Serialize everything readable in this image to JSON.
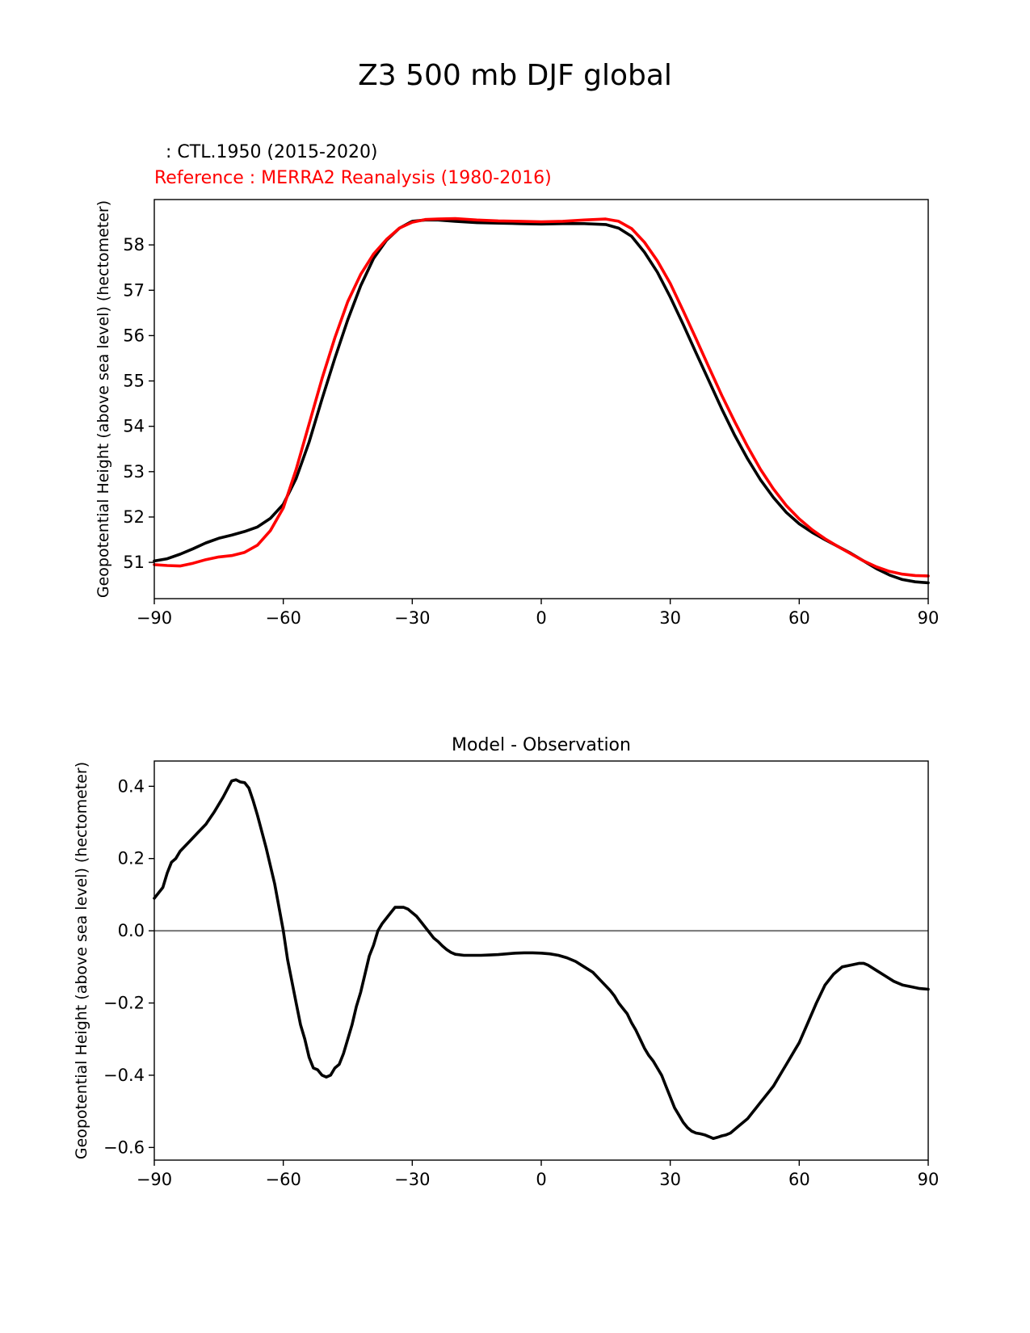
{
  "figure": {
    "title": "Z3 500 mb DJF global",
    "test_label": " : CTL.1950 (2015-2020)",
    "reference_label": "Reference : MERRA2 Reanalysis (1980-2016)"
  },
  "chart_data": [
    {
      "type": "line",
      "title": "",
      "xlabel": "",
      "ylabel": "Geopotential Height (above sea level) (hectometer)",
      "xlim": [
        -90,
        90
      ],
      "ylim": [
        50.2,
        59.0
      ],
      "xticks": [
        -90,
        -60,
        -30,
        0,
        30,
        60,
        90
      ],
      "xtick_labels": [
        "−90",
        "−60",
        "−30",
        "0",
        "30",
        "60",
        "90"
      ],
      "yticks": [
        51,
        52,
        53,
        54,
        55,
        56,
        57,
        58
      ],
      "ytick_labels": [
        "51",
        "52",
        "53",
        "54",
        "55",
        "56",
        "57",
        "58"
      ],
      "series": [
        {
          "name": "CTL.1950 (2015-2020)",
          "color": "#000000",
          "x": [
            -90,
            -87,
            -84,
            -81,
            -78,
            -75,
            -72,
            -69,
            -66,
            -63,
            -60,
            -57,
            -54,
            -51,
            -48,
            -45,
            -42,
            -39,
            -36,
            -33,
            -30,
            -27,
            -24,
            -20,
            -15,
            -10,
            -5,
            0,
            5,
            10,
            15,
            18,
            21,
            24,
            27,
            30,
            33,
            36,
            39,
            42,
            45,
            48,
            51,
            54,
            57,
            60,
            63,
            66,
            69,
            72,
            75,
            78,
            81,
            84,
            87,
            90
          ],
          "y": [
            51.03,
            51.08,
            51.18,
            51.3,
            51.43,
            51.53,
            51.6,
            51.68,
            51.78,
            51.97,
            52.28,
            52.85,
            53.65,
            54.6,
            55.5,
            56.35,
            57.1,
            57.7,
            58.1,
            58.37,
            58.52,
            58.55,
            58.55,
            58.52,
            58.49,
            58.48,
            58.47,
            58.46,
            58.47,
            58.47,
            58.45,
            58.37,
            58.19,
            57.84,
            57.4,
            56.85,
            56.25,
            55.62,
            55.0,
            54.38,
            53.8,
            53.28,
            52.82,
            52.43,
            52.1,
            51.85,
            51.66,
            51.5,
            51.35,
            51.2,
            51.03,
            50.86,
            50.72,
            50.62,
            50.57,
            50.55
          ]
        },
        {
          "name": "MERRA2 Reanalysis (1980-2016)",
          "color": "#ff0000",
          "x": [
            -90,
            -87,
            -84,
            -81,
            -78,
            -75,
            -72,
            -69,
            -66,
            -63,
            -60,
            -57,
            -54,
            -51,
            -48,
            -45,
            -42,
            -39,
            -36,
            -33,
            -30,
            -27,
            -24,
            -20,
            -15,
            -10,
            -5,
            0,
            5,
            10,
            15,
            18,
            21,
            24,
            27,
            30,
            33,
            36,
            39,
            42,
            45,
            48,
            51,
            54,
            57,
            60,
            63,
            66,
            69,
            72,
            75,
            78,
            81,
            84,
            87,
            90
          ],
          "y": [
            50.95,
            50.93,
            50.92,
            50.98,
            51.06,
            51.12,
            51.15,
            51.22,
            51.38,
            51.7,
            52.2,
            53.05,
            54.05,
            55.05,
            55.95,
            56.75,
            57.35,
            57.8,
            58.12,
            58.37,
            58.5,
            58.56,
            58.57,
            58.58,
            58.55,
            58.53,
            58.52,
            58.51,
            58.52,
            58.55,
            58.57,
            58.52,
            58.36,
            58.06,
            57.65,
            57.15,
            56.55,
            55.93,
            55.3,
            54.68,
            54.1,
            53.55,
            53.05,
            52.62,
            52.25,
            51.96,
            51.72,
            51.52,
            51.35,
            51.19,
            51.03,
            50.9,
            50.8,
            50.74,
            50.71,
            50.7
          ]
        }
      ]
    },
    {
      "type": "line",
      "title": "Model - Observation",
      "xlabel": "",
      "ylabel": "Geopotential Height (above sea level) (hectometer)",
      "xlim": [
        -90,
        90
      ],
      "ylim": [
        -0.635,
        0.47
      ],
      "xticks": [
        -90,
        -60,
        -30,
        0,
        30,
        60,
        90
      ],
      "xtick_labels": [
        "−90",
        "−60",
        "−30",
        "0",
        "30",
        "60",
        "90"
      ],
      "yticks": [
        -0.6,
        -0.4,
        -0.2,
        0.0,
        0.2,
        0.4
      ],
      "ytick_labels": [
        "−0.6",
        "−0.4",
        "−0.2",
        "0.0",
        "0.2",
        "0.4"
      ],
      "zero_line": {
        "value": 0.0,
        "color": "#808080"
      },
      "series": [
        {
          "name": "Model - Observation",
          "color": "#000000",
          "x": [
            -90,
            -88,
            -87,
            -86,
            -85,
            -84,
            -82,
            -80,
            -78,
            -76,
            -74,
            -72,
            -71,
            -70,
            -69,
            -68,
            -67,
            -66,
            -64,
            -62,
            -60,
            -59,
            -58,
            -57,
            -56,
            -55,
            -54,
            -53,
            -52,
            -51,
            -50,
            -49,
            -48,
            -47,
            -46,
            -45,
            -44,
            -43,
            -42,
            -41,
            -40,
            -39,
            -38,
            -37,
            -36,
            -35,
            -34,
            -33,
            -32,
            -31,
            -30,
            -29,
            -28,
            -27,
            -26,
            -25,
            -24,
            -23,
            -22,
            -21,
            -20,
            -18,
            -16,
            -14,
            -12,
            -10,
            -8,
            -6,
            -4,
            -2,
            0,
            2,
            4,
            6,
            8,
            10,
            12,
            14,
            16,
            17,
            18,
            19,
            20,
            21,
            22,
            23,
            24,
            25,
            26,
            27,
            28,
            29,
            30,
            31,
            32,
            33,
            34,
            35,
            36,
            37,
            38,
            39,
            40,
            41,
            42,
            43,
            44,
            45,
            46,
            47,
            48,
            49,
            50,
            51,
            52,
            53,
            54,
            55,
            56,
            57,
            58,
            59,
            60,
            62,
            64,
            66,
            68,
            70,
            72,
            74,
            75,
            76,
            78,
            80,
            82,
            84,
            86,
            88,
            90
          ],
          "y": [
            0.09,
            0.12,
            0.16,
            0.19,
            0.2,
            0.22,
            0.245,
            0.27,
            0.295,
            0.33,
            0.37,
            0.415,
            0.418,
            0.412,
            0.41,
            0.395,
            0.36,
            0.32,
            0.23,
            0.13,
            0.0,
            -0.08,
            -0.14,
            -0.2,
            -0.26,
            -0.3,
            -0.35,
            -0.38,
            -0.385,
            -0.4,
            -0.405,
            -0.4,
            -0.38,
            -0.37,
            -0.34,
            -0.3,
            -0.26,
            -0.21,
            -0.17,
            -0.12,
            -0.07,
            -0.04,
            0.0,
            0.02,
            0.035,
            0.05,
            0.065,
            0.065,
            0.065,
            0.06,
            0.05,
            0.04,
            0.025,
            0.01,
            -0.005,
            -0.02,
            -0.03,
            -0.042,
            -0.052,
            -0.06,
            -0.065,
            -0.068,
            -0.068,
            -0.068,
            -0.067,
            -0.066,
            -0.064,
            -0.062,
            -0.061,
            -0.061,
            -0.062,
            -0.064,
            -0.068,
            -0.075,
            -0.085,
            -0.1,
            -0.115,
            -0.14,
            -0.165,
            -0.18,
            -0.2,
            -0.215,
            -0.23,
            -0.255,
            -0.275,
            -0.3,
            -0.325,
            -0.345,
            -0.36,
            -0.38,
            -0.4,
            -0.43,
            -0.46,
            -0.49,
            -0.51,
            -0.53,
            -0.545,
            -0.555,
            -0.56,
            -0.562,
            -0.565,
            -0.57,
            -0.575,
            -0.572,
            -0.568,
            -0.565,
            -0.56,
            -0.55,
            -0.54,
            -0.53,
            -0.52,
            -0.505,
            -0.49,
            -0.475,
            -0.46,
            -0.445,
            -0.43,
            -0.41,
            -0.39,
            -0.37,
            -0.35,
            -0.33,
            -0.31,
            -0.255,
            -0.2,
            -0.15,
            -0.12,
            -0.1,
            -0.095,
            -0.09,
            -0.09,
            -0.095,
            -0.11,
            -0.125,
            -0.14,
            -0.15,
            -0.155,
            -0.16,
            -0.162
          ]
        }
      ]
    }
  ]
}
